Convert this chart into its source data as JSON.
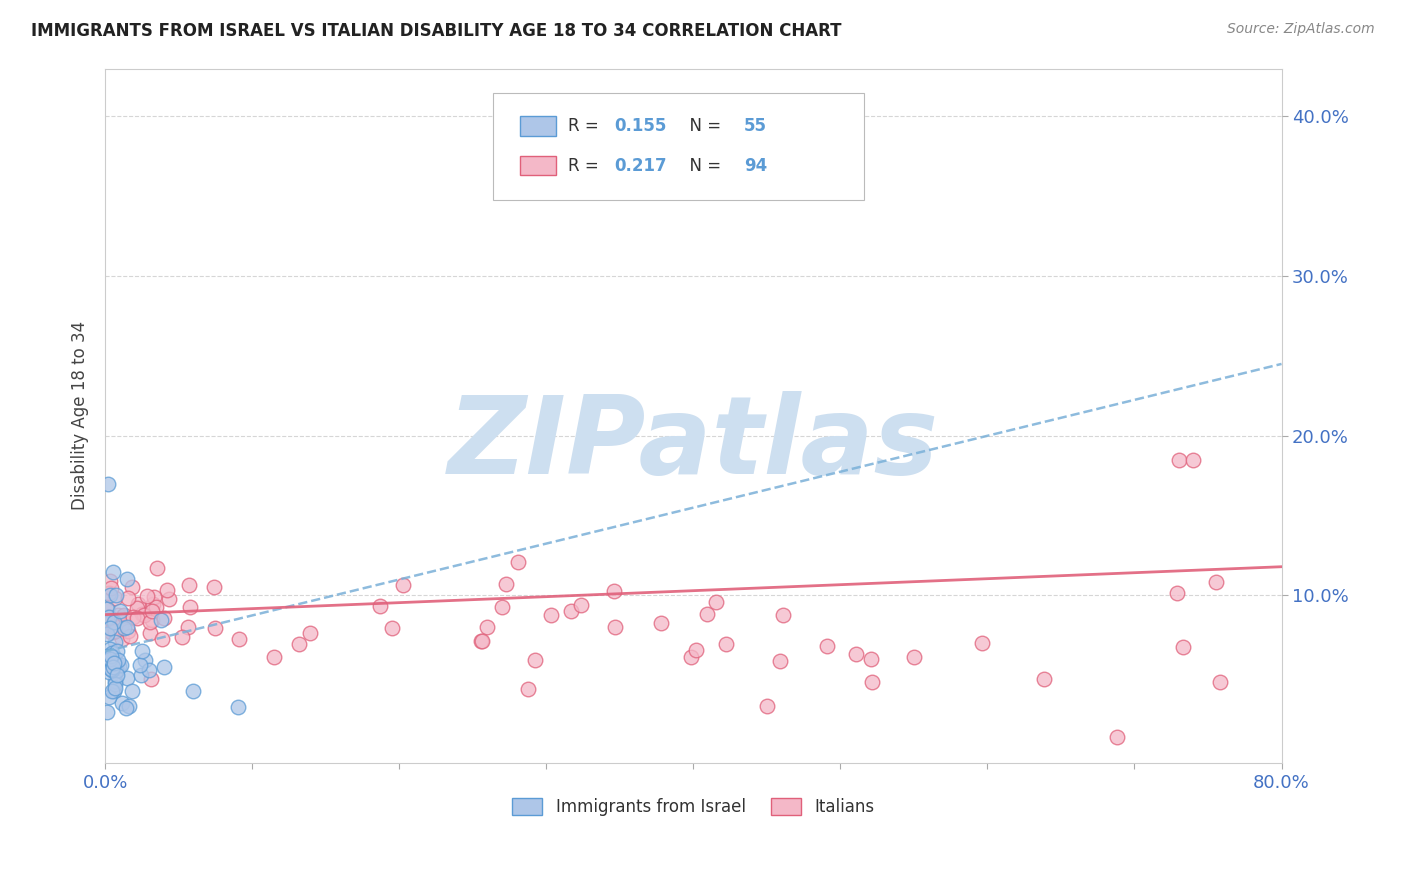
{
  "title": "IMMIGRANTS FROM ISRAEL VS ITALIAN DISABILITY AGE 18 TO 34 CORRELATION CHART",
  "source": "Source: ZipAtlas.com",
  "ylabel": "Disability Age 18 to 34",
  "xlim": [
    0.0,
    0.8
  ],
  "ylim": [
    -0.005,
    0.43
  ],
  "blue_R": 0.155,
  "blue_N": 55,
  "pink_R": 0.217,
  "pink_N": 94,
  "blue_fill_color": "#aec6e8",
  "blue_edge_color": "#5b9bd5",
  "pink_fill_color": "#f4b8c8",
  "pink_edge_color": "#e0607a",
  "blue_line_color": "#7ab0d8",
  "pink_line_color": "#e0607a",
  "legend_blue_label": "Immigrants from Israel",
  "legend_pink_label": "Italians",
  "watermark_text": "ZIPatlas",
  "watermark_color": "#cddff0",
  "background_color": "#ffffff",
  "grid_color": "#cccccc",
  "tick_color": "#4472c4",
  "blue_trend_x0": 0.0,
  "blue_trend_y0": 0.065,
  "blue_trend_x1": 0.8,
  "blue_trend_y1": 0.245,
  "pink_trend_x0": 0.0,
  "pink_trend_y0": 0.088,
  "pink_trend_x1": 0.8,
  "pink_trend_y1": 0.118
}
